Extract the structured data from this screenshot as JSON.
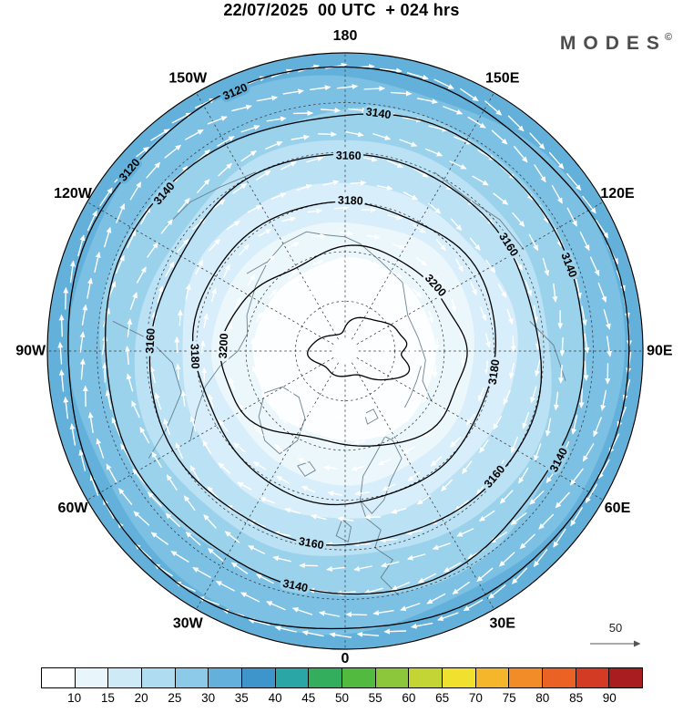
{
  "header": {
    "title": "22/07/2025  00 UTC  + 024 hrs",
    "brand": "MODES",
    "brand_mark": "©"
  },
  "chart_data": {
    "type": "contour-map",
    "projection": "north polar stereographic",
    "valid_datetime": "22/07/2025 00 UTC",
    "forecast_lead": "+ 024 hrs",
    "contour_field": {
      "name": "geopotential height",
      "levels": [
        "3120",
        "3140",
        "3160",
        "3180",
        "3200"
      ],
      "interval": 20
    },
    "longitude_labels": [
      {
        "label": "180",
        "angle": -90
      },
      {
        "label": "150E",
        "angle": -60
      },
      {
        "label": "120E",
        "angle": -30
      },
      {
        "label": "90E",
        "angle": 0
      },
      {
        "label": "60E",
        "angle": 30
      },
      {
        "label": "30E",
        "angle": 60
      },
      {
        "label": "0",
        "angle": 90
      },
      {
        "label": "30W",
        "angle": 120
      },
      {
        "label": "60W",
        "angle": 150
      },
      {
        "label": "90W",
        "angle": 180
      },
      {
        "label": "120W",
        "angle": 210
      },
      {
        "label": "150W",
        "angle": 240
      }
    ],
    "contours": [
      {
        "level": "3120",
        "f": 0.945,
        "amp": 0.012,
        "label_angles": [
          -113,
          -140
        ]
      },
      {
        "level": "3140",
        "f": 0.805,
        "amp": 0.015,
        "label_angles": [
          -82,
          -139,
          -21,
          27,
          102
        ]
      },
      {
        "level": "3160",
        "f": 0.655,
        "amp": 0.016,
        "label_angles": [
          -89,
          183,
          -33,
          40,
          100
        ]
      },
      {
        "level": "3180",
        "f": 0.505,
        "amp": 0.02,
        "label_angles": [
          -88,
          178,
          8
        ]
      },
      {
        "level": "3200",
        "f": 0.365,
        "amp": 0.05,
        "ex": 1.12,
        "ey": 0.9,
        "label_angles": [
          -42,
          183
        ]
      }
    ],
    "inner_contour": {
      "cx": 0.06,
      "cy": 0.0,
      "rx": 0.16,
      "ry": 0.098,
      "amp": 0.14
    },
    "shading_bands": [
      {
        "f": 1.0,
        "color": "#63b1db"
      },
      {
        "f": 0.93,
        "color": "#7cc0e4"
      },
      {
        "f": 0.815,
        "color": "#9ad2ec"
      },
      {
        "f": 0.7,
        "color": "#bbe1f4"
      },
      {
        "f": 0.565,
        "color": "#d8eefa"
      },
      {
        "f": 0.44,
        "color": "#ecf7fc"
      },
      {
        "f": 0.305,
        "color": "#fcfeff"
      }
    ],
    "graticule": {
      "lat_circle_fracs": [
        0.167,
        0.333,
        0.5,
        0.667,
        0.833
      ],
      "lon_step_deg": 30
    },
    "wind_arrows": {
      "ring_fracs": [
        0.14,
        0.225,
        0.31,
        0.395,
        0.48,
        0.565,
        0.65,
        0.73,
        0.81,
        0.885,
        0.955
      ],
      "spacing_px": 30,
      "color": "#ffffff"
    },
    "wind_scale": {
      "label": "50"
    },
    "colorbar": {
      "tick_labels": [
        "10",
        "15",
        "20",
        "25",
        "30",
        "35",
        "40",
        "45",
        "50",
        "55",
        "60",
        "65",
        "70",
        "75",
        "80",
        "85",
        "90"
      ],
      "colors": [
        "#ffffff",
        "#e8f6fc",
        "#cfeaf7",
        "#b0dcf1",
        "#8ccae8",
        "#63b1db",
        "#3d95cb",
        "#2aa6a6",
        "#33ae5c",
        "#52bb3f",
        "#8cc63a",
        "#c2d534",
        "#f0e12f",
        "#f6b62b",
        "#f28c28",
        "#ea6324",
        "#d33b25",
        "#a91d20"
      ]
    }
  }
}
